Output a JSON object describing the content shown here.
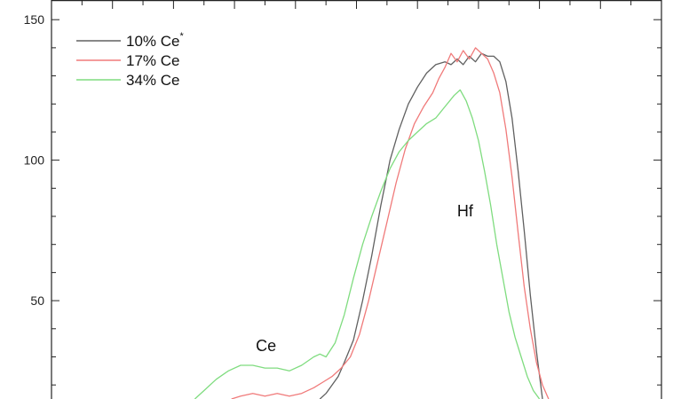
{
  "chart_data": {
    "type": "line",
    "title": "",
    "xlabel": "",
    "ylabel": "",
    "ylim": [
      15,
      157
    ],
    "x_range": [
      0,
      100
    ],
    "y_ticks": [
      50,
      100,
      150
    ],
    "y_tick_labels": [
      "50",
      "100",
      "150"
    ],
    "grid": false,
    "legend_position": "top-left",
    "series": [
      {
        "name": "10% Ce",
        "name_superscript": "*",
        "color": "#606060",
        "x": [
          44.0,
          45.0,
          46.0,
          47.0,
          48.0,
          49.5,
          51.0,
          52.5,
          54.0,
          55.5,
          57.0,
          58.5,
          60.0,
          61.5,
          63.0,
          64.5,
          65.5,
          66.5,
          67.5,
          68.5,
          69.5,
          70.5,
          71.5,
          72.5,
          73.5,
          74.5,
          75.5,
          76.5,
          77.5,
          78.5,
          79.5,
          80.5
        ],
        "y": [
          15,
          17,
          20,
          23,
          28,
          36,
          50,
          66,
          84,
          100,
          111,
          120,
          126,
          131,
          134,
          135,
          134,
          136,
          134,
          137,
          135,
          138,
          137,
          137,
          135,
          128,
          115,
          96,
          75,
          52,
          32,
          15
        ]
      },
      {
        "name": "17% Ce",
        "color": "#f07a7a",
        "x": [
          29.5,
          31.0,
          33.0,
          35.0,
          37.0,
          39.0,
          41.0,
          43.0,
          44.5,
          46.0,
          47.5,
          49.0,
          50.5,
          52.0,
          53.5,
          55.0,
          56.5,
          58.0,
          59.5,
          61.0,
          62.5,
          63.5,
          64.5,
          65.5,
          66.5,
          67.5,
          68.5,
          69.5,
          70.5,
          71.5,
          72.5,
          73.5,
          74.5,
          75.5,
          76.5,
          77.5,
          78.5,
          79.5,
          80.5,
          81.5
        ],
        "y": [
          15,
          16,
          17,
          16,
          17,
          16,
          17,
          19,
          21,
          23,
          26,
          30,
          38,
          50,
          64,
          78,
          92,
          104,
          113,
          119,
          124,
          129,
          133,
          138,
          135,
          139,
          136,
          140,
          138,
          136,
          131,
          124,
          111,
          94,
          74,
          55,
          40,
          28,
          20,
          15
        ]
      },
      {
        "name": "34% Ce",
        "color": "#7fdc7f",
        "x": [
          23.5,
          25.0,
          27.0,
          29.0,
          31.0,
          33.0,
          35.0,
          37.0,
          39.0,
          41.0,
          43.0,
          44.0,
          45.0,
          46.5,
          48.0,
          49.5,
          51.0,
          52.5,
          54.0,
          55.5,
          57.0,
          58.5,
          60.0,
          61.5,
          63.0,
          64.5,
          66.0,
          67.0,
          68.0,
          69.0,
          70.0,
          71.0,
          72.0,
          73.0,
          74.0,
          75.0,
          76.0,
          77.0,
          78.0,
          79.0,
          80.0
        ],
        "y": [
          15,
          18,
          22,
          25,
          27,
          27,
          26,
          26,
          25,
          27,
          30,
          31,
          30,
          35,
          45,
          58,
          70,
          80,
          89,
          97,
          103,
          107,
          110,
          113,
          115,
          119,
          123,
          125,
          121,
          115,
          107,
          96,
          84,
          70,
          58,
          46,
          37,
          30,
          23,
          18,
          15
        ]
      }
    ],
    "annotations": [
      {
        "text": "Ce",
        "x": 33.5,
        "y": 32
      },
      {
        "text": "Hf",
        "x": 66.5,
        "y": 80
      }
    ]
  }
}
